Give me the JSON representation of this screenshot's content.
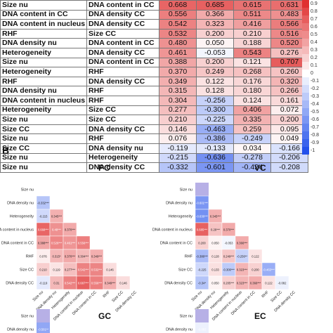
{
  "panel_a": {
    "rows": [
      {
        "var1": "Size nu",
        "var2": "DNA content in CC",
        "values": [
          "0.668",
          "0.685",
          "0.615",
          "0.631"
        ]
      },
      {
        "var1": "DNA content in CC",
        "var2": "DNA density CC",
        "values": [
          "0.556",
          "0.366",
          "0.511",
          "0.483"
        ]
      },
      {
        "var1": "DNA content in nucleus",
        "var2": "DNA density CC",
        "values": [
          "0.542",
          "0.323",
          "0.416",
          "0.566"
        ]
      },
      {
        "var1": "RHF",
        "var2": "Size CC",
        "values": [
          "0.532",
          "0.200",
          "0.210",
          "0.516"
        ]
      },
      {
        "var1": "DNA density nu",
        "var2": "DNA content in CC",
        "values": [
          "0.480",
          "0.050",
          "0.188",
          "0.520"
        ]
      },
      {
        "var1": "Heterogeneity",
        "var2": "DNA density CC",
        "values": [
          "0.461",
          "-0.053",
          "0.543",
          "0.276"
        ]
      },
      {
        "var1": "Size nu",
        "var2": "DNA content in CC",
        "values": [
          "0.388",
          "0.200",
          "0.121",
          "0.707"
        ]
      },
      {
        "var1": "Heterogeneity",
        "var2": "RHF",
        "values": [
          "0.370",
          "0.249",
          "0.268",
          "0.260"
        ]
      },
      {
        "var1": "RHF",
        "var2": "DNA density CC",
        "values": [
          "0.349",
          "0.122",
          "0.176",
          "0.320"
        ]
      },
      {
        "var1": "DNA density nu",
        "var2": "RHF",
        "values": [
          "0.315",
          "0.128",
          "0.180",
          "0.266"
        ]
      },
      {
        "var1": "DNA content in nucleus",
        "var2": "RHF",
        "values": [
          "0.304",
          "-0.256",
          "0.124",
          "0.161"
        ]
      },
      {
        "var1": "Heterogeneity",
        "var2": "Size CC",
        "values": [
          "0.277",
          "-0.300",
          "0.406",
          "0.072"
        ]
      },
      {
        "var1": "Size nu",
        "var2": "Size CC",
        "values": [
          "0.210",
          "-0.225",
          "0.335",
          "0.200"
        ]
      },
      {
        "var1": "Size CC",
        "var2": "DNA density CC",
        "values": [
          "0.146",
          "-0.463",
          "0.259",
          "0.095"
        ]
      },
      {
        "var1": "Size nu",
        "var2": "RHF",
        "values": [
          "0.076",
          "-0.386",
          "-0.249",
          "0.049"
        ]
      },
      {
        "var1": "Size CC",
        "var2": "DNA density nu",
        "values": [
          "-0.119",
          "-0.133",
          "0.034",
          "-0.166"
        ]
      },
      {
        "var1": "Size nu",
        "var2": "Heterogeneity",
        "values": [
          "-0.215",
          "-0.636",
          "-0.278",
          "-0.206"
        ]
      },
      {
        "var1": "Size nu",
        "var2": "DNA density CC",
        "values": [
          "-0.332",
          "-0.601",
          "-0.424",
          "-0.208"
        ]
      }
    ],
    "scale_ticks": [
      "0.9",
      "0.8",
      "0.7",
      "0.6",
      "0.5",
      "0.4",
      "0.3",
      "0.2",
      "0.1",
      "0",
      "-0.1",
      "-0.2",
      "-0.3",
      "-0.4",
      "-0.5",
      "-0.6",
      "-0.7",
      "-0.8",
      "-0.9",
      "-1"
    ],
    "p_legend": [
      {
        "label": "p<0.05",
        "color": "#c9d4f2"
      },
      {
        "label": "p<0.01",
        "color": "#8aa2e6"
      },
      {
        "label": "p<0.001",
        "color": "#3e63d6"
      }
    ]
  },
  "panel_b": {
    "letter": "B",
    "variables": [
      "Size nu",
      "DNA density nu",
      "Heterogeneity",
      "DNA content in nucleus",
      "DNA content in CC",
      "RHF",
      "Size CC",
      "DNA density CC"
    ],
    "pc": {
      "title": "PC",
      "cells": [
        [
          "-0.332***"
        ],
        [
          "-0.215",
          "0.345***"
        ],
        [
          "0.668***",
          "0.48***",
          "0.370***"
        ],
        [
          "0.388***",
          "0.526***",
          "0.461***",
          "0.556***"
        ],
        [
          "0.076",
          "0.315*",
          "0.370***",
          "0.304***",
          "0.349***"
        ],
        [
          "0.210",
          "0.119",
          "0.277***",
          "0.542***",
          "0.532***",
          "0.146"
        ],
        [
          "-0.119",
          "0.31",
          "0.542***",
          "0.687***",
          "0.556***",
          "0.349***",
          "0.146"
        ]
      ]
    },
    "vc": {
      "title": "VC",
      "cells": [
        [
          "-0.601***"
        ],
        [
          "-0.636***",
          "0.345***"
        ],
        [
          "0.685***",
          "0.26***",
          "0.370***"
        ],
        [
          "0.200",
          "0.050",
          "-0.053",
          "0.366***"
        ],
        [
          "-0.386***",
          "0.128",
          "0.249***",
          "-0.256**",
          "0.122"
        ],
        [
          "-0.225",
          "0.133",
          "-0.300***",
          "0.323***",
          "0.200",
          "-0.463***"
        ],
        [
          "-0.34*",
          "0.050",
          "0.205***",
          "0.323***",
          "0.366***",
          "0.122",
          "-0.082"
        ]
      ]
    },
    "gc": {
      "title": "GC",
      "labels": [
        "Size nu",
        "DNA density nu"
      ],
      "cell": "-0.501**"
    },
    "ec": {
      "title": "EC",
      "labels": [
        "Size nu",
        "DNA density nu"
      ],
      "cell": "-0.082"
    }
  }
}
